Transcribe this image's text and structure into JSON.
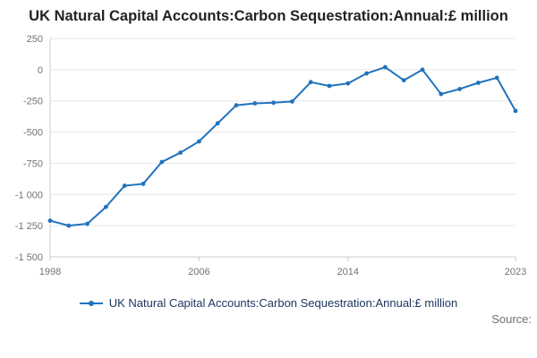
{
  "chart_data": {
    "type": "line",
    "title": "UK Natural Capital Accounts:Carbon Sequestration:Annual:£ million",
    "xlabel": "",
    "ylabel": "",
    "x": [
      1998,
      1999,
      2000,
      2001,
      2002,
      2003,
      2004,
      2005,
      2006,
      2007,
      2008,
      2009,
      2010,
      2011,
      2012,
      2013,
      2014,
      2015,
      2016,
      2017,
      2018,
      2019,
      2020,
      2021,
      2022,
      2023
    ],
    "values": [
      -1210,
      -1250,
      -1235,
      -1100,
      -930,
      -915,
      -740,
      -665,
      -575,
      -430,
      -285,
      -270,
      -265,
      -255,
      -100,
      -130,
      -110,
      -30,
      20,
      -85,
      0,
      -195,
      -155,
      -105,
      -65,
      -330
    ],
    "ylim": [
      -1500,
      250
    ],
    "ytick_values": [
      250,
      0,
      -250,
      -500,
      -750,
      -1000,
      -1250,
      -1500
    ],
    "ytick_labels": [
      "250",
      "0",
      "-250",
      "-500",
      "-750",
      "-1 000",
      "-1 250",
      "-1 500"
    ],
    "xtick_values": [
      1998,
      2006,
      2014,
      2023
    ],
    "xtick_labels": [
      "1998",
      "2006",
      "2014",
      "2023"
    ],
    "grid": "horizontal",
    "legend_position": "bottom"
  },
  "legend": {
    "label": "UK Natural Capital Accounts:Carbon Sequestration:Annual:£ million"
  },
  "footer": {
    "source": "Source:"
  },
  "colors": {
    "line": "#2073bc",
    "grid": "#e6e6e6",
    "axis": "#c9cdd1",
    "tick_text": "#6f7478",
    "title_text": "#222222",
    "legend_text": "#1a355e",
    "source_text": "#707070"
  }
}
